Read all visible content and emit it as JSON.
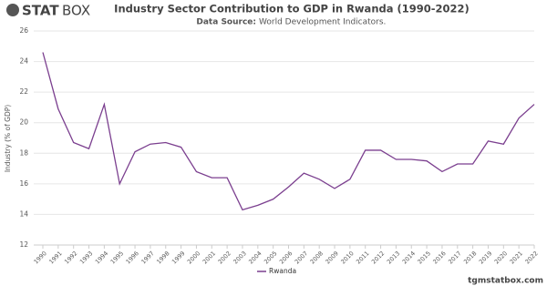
{
  "logo": {
    "bold": "STAT",
    "light": "BOX"
  },
  "footer": "tgmstatbox.com",
  "chart_data": {
    "type": "line",
    "title": "Industry Sector Contribution to GDP in Rwanda (1990-2022)",
    "subtitle_label": "Data Source:",
    "subtitle": "World Development Indicators.",
    "y_label": "Industry (% of GDP)",
    "x": [
      1990,
      1991,
      1992,
      1993,
      1994,
      1995,
      1996,
      1997,
      1998,
      1999,
      2000,
      2001,
      2002,
      2003,
      2004,
      2005,
      2006,
      2007,
      2008,
      2009,
      2010,
      2011,
      2012,
      2013,
      2014,
      2015,
      2016,
      2017,
      2018,
      2019,
      2020,
      2021,
      2022
    ],
    "series": [
      {
        "name": "Rwanda",
        "color": "#7b3f8f",
        "values": [
          24.6,
          20.9,
          18.7,
          18.3,
          21.2,
          16.0,
          18.1,
          18.6,
          18.7,
          18.4,
          16.8,
          16.4,
          16.4,
          14.3,
          14.6,
          15.0,
          15.8,
          16.7,
          16.3,
          15.7,
          16.3,
          18.2,
          18.2,
          17.6,
          17.6,
          17.5,
          16.8,
          17.3,
          17.3,
          18.8,
          18.6,
          20.3,
          21.2
        ]
      }
    ],
    "xlim": [
      1990,
      2022
    ],
    "xticks": [
      1990,
      1991,
      1992,
      1993,
      1994,
      1995,
      1996,
      1997,
      1998,
      1999,
      2000,
      2001,
      2002,
      2003,
      2004,
      2005,
      2006,
      2007,
      2008,
      2009,
      2010,
      2011,
      2012,
      2013,
      2014,
      2015,
      2016,
      2017,
      2018,
      2019,
      2020,
      2021,
      2022
    ],
    "ylim": [
      12,
      26
    ],
    "yticks": [
      12,
      14,
      16,
      18,
      20,
      22,
      24,
      26
    ],
    "grid": true,
    "legend": "bottom"
  }
}
